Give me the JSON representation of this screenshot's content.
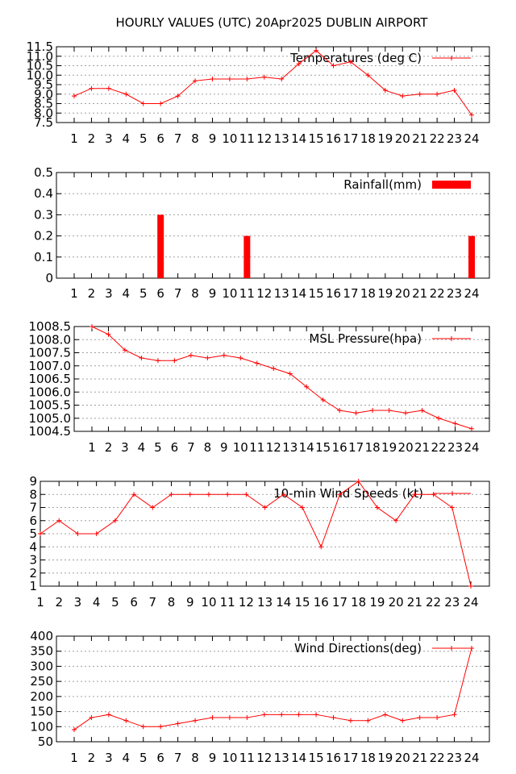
{
  "title": "HOURLY VALUES (UTC) 20Apr2025  DUBLIN AIRPORT",
  "colors": {
    "series": "#ff0000",
    "grid": "#a0a0a0",
    "axis": "#000000"
  },
  "chart_data": [
    {
      "type": "line",
      "legend": "Temperatures (deg C)",
      "legend_position": "top-right",
      "grid": true,
      "x": [
        1,
        2,
        3,
        4,
        5,
        6,
        7,
        8,
        9,
        10,
        11,
        12,
        13,
        14,
        15,
        16,
        17,
        18,
        19,
        20,
        21,
        22,
        23,
        24
      ],
      "values": [
        8.9,
        9.3,
        9.3,
        9.0,
        8.5,
        8.5,
        8.9,
        9.7,
        9.8,
        9.8,
        9.8,
        9.9,
        9.8,
        10.6,
        11.3,
        10.5,
        10.7,
        10.0,
        9.2,
        8.9,
        9.0,
        9.0,
        9.2,
        7.9
      ],
      "ylim": [
        7.5,
        11.5
      ],
      "yticks": [
        7.5,
        8.0,
        8.5,
        9.0,
        9.5,
        10.0,
        10.5,
        11.0,
        11.5
      ],
      "ytick_labels": [
        "7.5",
        "8.0",
        "8.5",
        "9.0",
        "9.5",
        "10.0",
        "10.5",
        "11.0",
        "11.5"
      ],
      "xticks": [
        "1",
        "2",
        "3",
        "4",
        "5",
        "6",
        "7",
        "8",
        "9",
        "10",
        "11",
        "12",
        "13",
        "14",
        "15",
        "16",
        "17",
        "18",
        "19",
        "20",
        "21",
        "22",
        "23",
        "24"
      ]
    },
    {
      "type": "bar",
      "legend": "Rainfall(mm)",
      "legend_position": "top-right",
      "grid": true,
      "x": [
        1,
        2,
        3,
        4,
        5,
        6,
        7,
        8,
        9,
        10,
        11,
        12,
        13,
        14,
        15,
        16,
        17,
        18,
        19,
        20,
        21,
        22,
        23,
        24
      ],
      "values": [
        0,
        0,
        0,
        0,
        0,
        0.3,
        0,
        0,
        0,
        0,
        0.2,
        0,
        0,
        0,
        0,
        0,
        0,
        0,
        0,
        0,
        0,
        0,
        0,
        0.2
      ],
      "ylim": [
        0,
        0.5
      ],
      "yticks": [
        0,
        0.1,
        0.2,
        0.3,
        0.4,
        0.5
      ],
      "ytick_labels": [
        "0",
        "0.1",
        "0.2",
        "0.3",
        "0.4",
        "0.5"
      ],
      "xticks": [
        "1",
        "2",
        "3",
        "4",
        "5",
        "6",
        "7",
        "8",
        "9",
        "10",
        "11",
        "12",
        "13",
        "14",
        "15",
        "16",
        "17",
        "18",
        "19",
        "20",
        "21",
        "22",
        "23",
        "24"
      ]
    },
    {
      "type": "line",
      "legend": "MSL Pressure(hpa)",
      "legend_position": "top-right",
      "grid": true,
      "x": [
        1,
        2,
        3,
        4,
        5,
        6,
        7,
        8,
        9,
        10,
        11,
        12,
        13,
        14,
        15,
        16,
        17,
        18,
        19,
        20,
        21,
        22,
        23,
        24
      ],
      "values": [
        1008.5,
        1008.2,
        1007.6,
        1007.3,
        1007.2,
        1007.2,
        1007.4,
        1007.3,
        1007.4,
        1007.3,
        1007.1,
        1006.9,
        1006.7,
        1006.2,
        1005.7,
        1005.3,
        1005.2,
        1005.3,
        1005.3,
        1005.2,
        1005.3,
        1005.0,
        1004.8,
        1004.6
      ],
      "ylim": [
        1004.5,
        1008.5
      ],
      "yticks": [
        1004.5,
        1005.0,
        1005.5,
        1006.0,
        1006.5,
        1007.0,
        1007.5,
        1008.0,
        1008.5
      ],
      "ytick_labels": [
        "1004.5",
        "1005.0",
        "1005.5",
        "1006.0",
        "1006.5",
        "1007.0",
        "1007.5",
        "1008.0",
        "1008.5"
      ],
      "xticks": [
        "1",
        "2",
        "3",
        "4",
        "5",
        "6",
        "7",
        "8",
        "9",
        "10",
        "11",
        "12",
        "13",
        "14",
        "15",
        "16",
        "17",
        "18",
        "19",
        "20",
        "21",
        "22",
        "23",
        "24"
      ]
    },
    {
      "type": "line",
      "legend": "10-min Wind Speeds (kt)",
      "legend_position": "top-right",
      "grid": true,
      "x": [
        1,
        2,
        3,
        4,
        5,
        6,
        7,
        8,
        9,
        10,
        11,
        12,
        13,
        14,
        15,
        16,
        17,
        18,
        19,
        20,
        21,
        22,
        23,
        24
      ],
      "values": [
        5,
        6,
        5,
        5,
        6,
        8,
        7,
        8,
        8,
        8,
        8,
        8,
        7,
        8,
        7,
        4,
        8,
        9,
        7,
        6,
        8,
        8,
        7,
        1
      ],
      "ylim": [
        1,
        9
      ],
      "yticks": [
        1,
        2,
        3,
        4,
        5,
        6,
        7,
        8,
        9
      ],
      "ytick_labels": [
        "1",
        "2",
        "3",
        "4",
        "5",
        "6",
        "7",
        "8",
        "9"
      ],
      "xticks": [
        "1",
        "2",
        "3",
        "4",
        "5",
        "6",
        "7",
        "8",
        "9",
        "10",
        "11",
        "12",
        "13",
        "14",
        "15",
        "16",
        "17",
        "18",
        "19",
        "20",
        "21",
        "22",
        "23",
        "24"
      ]
    },
    {
      "type": "line",
      "legend": "Wind Directions(deg)",
      "legend_position": "top-right",
      "grid": true,
      "x": [
        1,
        2,
        3,
        4,
        5,
        6,
        7,
        8,
        9,
        10,
        11,
        12,
        13,
        14,
        15,
        16,
        17,
        18,
        19,
        20,
        21,
        22,
        23,
        24
      ],
      "values": [
        90,
        130,
        140,
        120,
        100,
        100,
        110,
        120,
        130,
        130,
        130,
        140,
        140,
        140,
        140,
        130,
        120,
        120,
        140,
        120,
        130,
        130,
        140,
        360
      ],
      "ylim": [
        50,
        400
      ],
      "yticks": [
        50,
        100,
        150,
        200,
        250,
        300,
        350,
        400
      ],
      "ytick_labels": [
        "50",
        "100",
        "150",
        "200",
        "250",
        "300",
        "350",
        "400"
      ],
      "xticks": [
        "1",
        "2",
        "3",
        "4",
        "5",
        "6",
        "7",
        "8",
        "9",
        "10",
        "11",
        "12",
        "13",
        "14",
        "15",
        "16",
        "17",
        "18",
        "19",
        "20",
        "21",
        "22",
        "23",
        "24"
      ]
    }
  ]
}
